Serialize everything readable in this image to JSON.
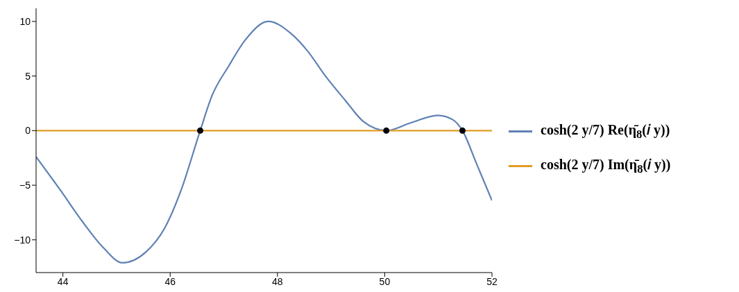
{
  "chart_data": {
    "type": "line",
    "xlim": [
      43.5,
      52
    ],
    "xticks": [
      44,
      46,
      48,
      50,
      52
    ],
    "ylim": [
      -13,
      11.2
    ],
    "yticks": [
      -10,
      -5,
      0,
      5,
      10
    ],
    "grid": false,
    "legend": "right",
    "line_style": "solid",
    "series": [
      {
        "name": "cosh(2 y/7) Re(η̄$_{8}$(𝑖 y))",
        "color": "#5e81b5",
        "marker": "none",
        "x": [
          43.5,
          43.96,
          44.36,
          44.75,
          45.11,
          45.55,
          45.9,
          46.2,
          46.56,
          46.78,
          47.09,
          47.4,
          47.83,
          48.25,
          48.56,
          48.91,
          49.26,
          49.61,
          50.03,
          50.48,
          50.99,
          51.27,
          51.45,
          51.71,
          52.0
        ],
        "values": [
          -2.4,
          -5.5,
          -8.3,
          -10.7,
          -12.1,
          -11.1,
          -8.9,
          -5.5,
          0,
          3.2,
          5.9,
          8.3,
          10.0,
          8.9,
          7.3,
          4.9,
          2.8,
          0.8,
          0,
          0.7,
          1.4,
          1.0,
          0,
          -3.0,
          -6.4
        ]
      },
      {
        "name": "cosh(2 y/7) Im(η̄$_{8}$(𝑖 y))",
        "color": "#e19c24",
        "marker": "none",
        "x": [
          43.5,
          52
        ],
        "values": [
          0,
          0
        ]
      },
      {
        "type": "scatter",
        "color": "#000000",
        "marker": "circle",
        "x": [
          46.56,
          50.03,
          51.45
        ],
        "values": [
          0,
          0,
          0
        ]
      }
    ]
  }
}
